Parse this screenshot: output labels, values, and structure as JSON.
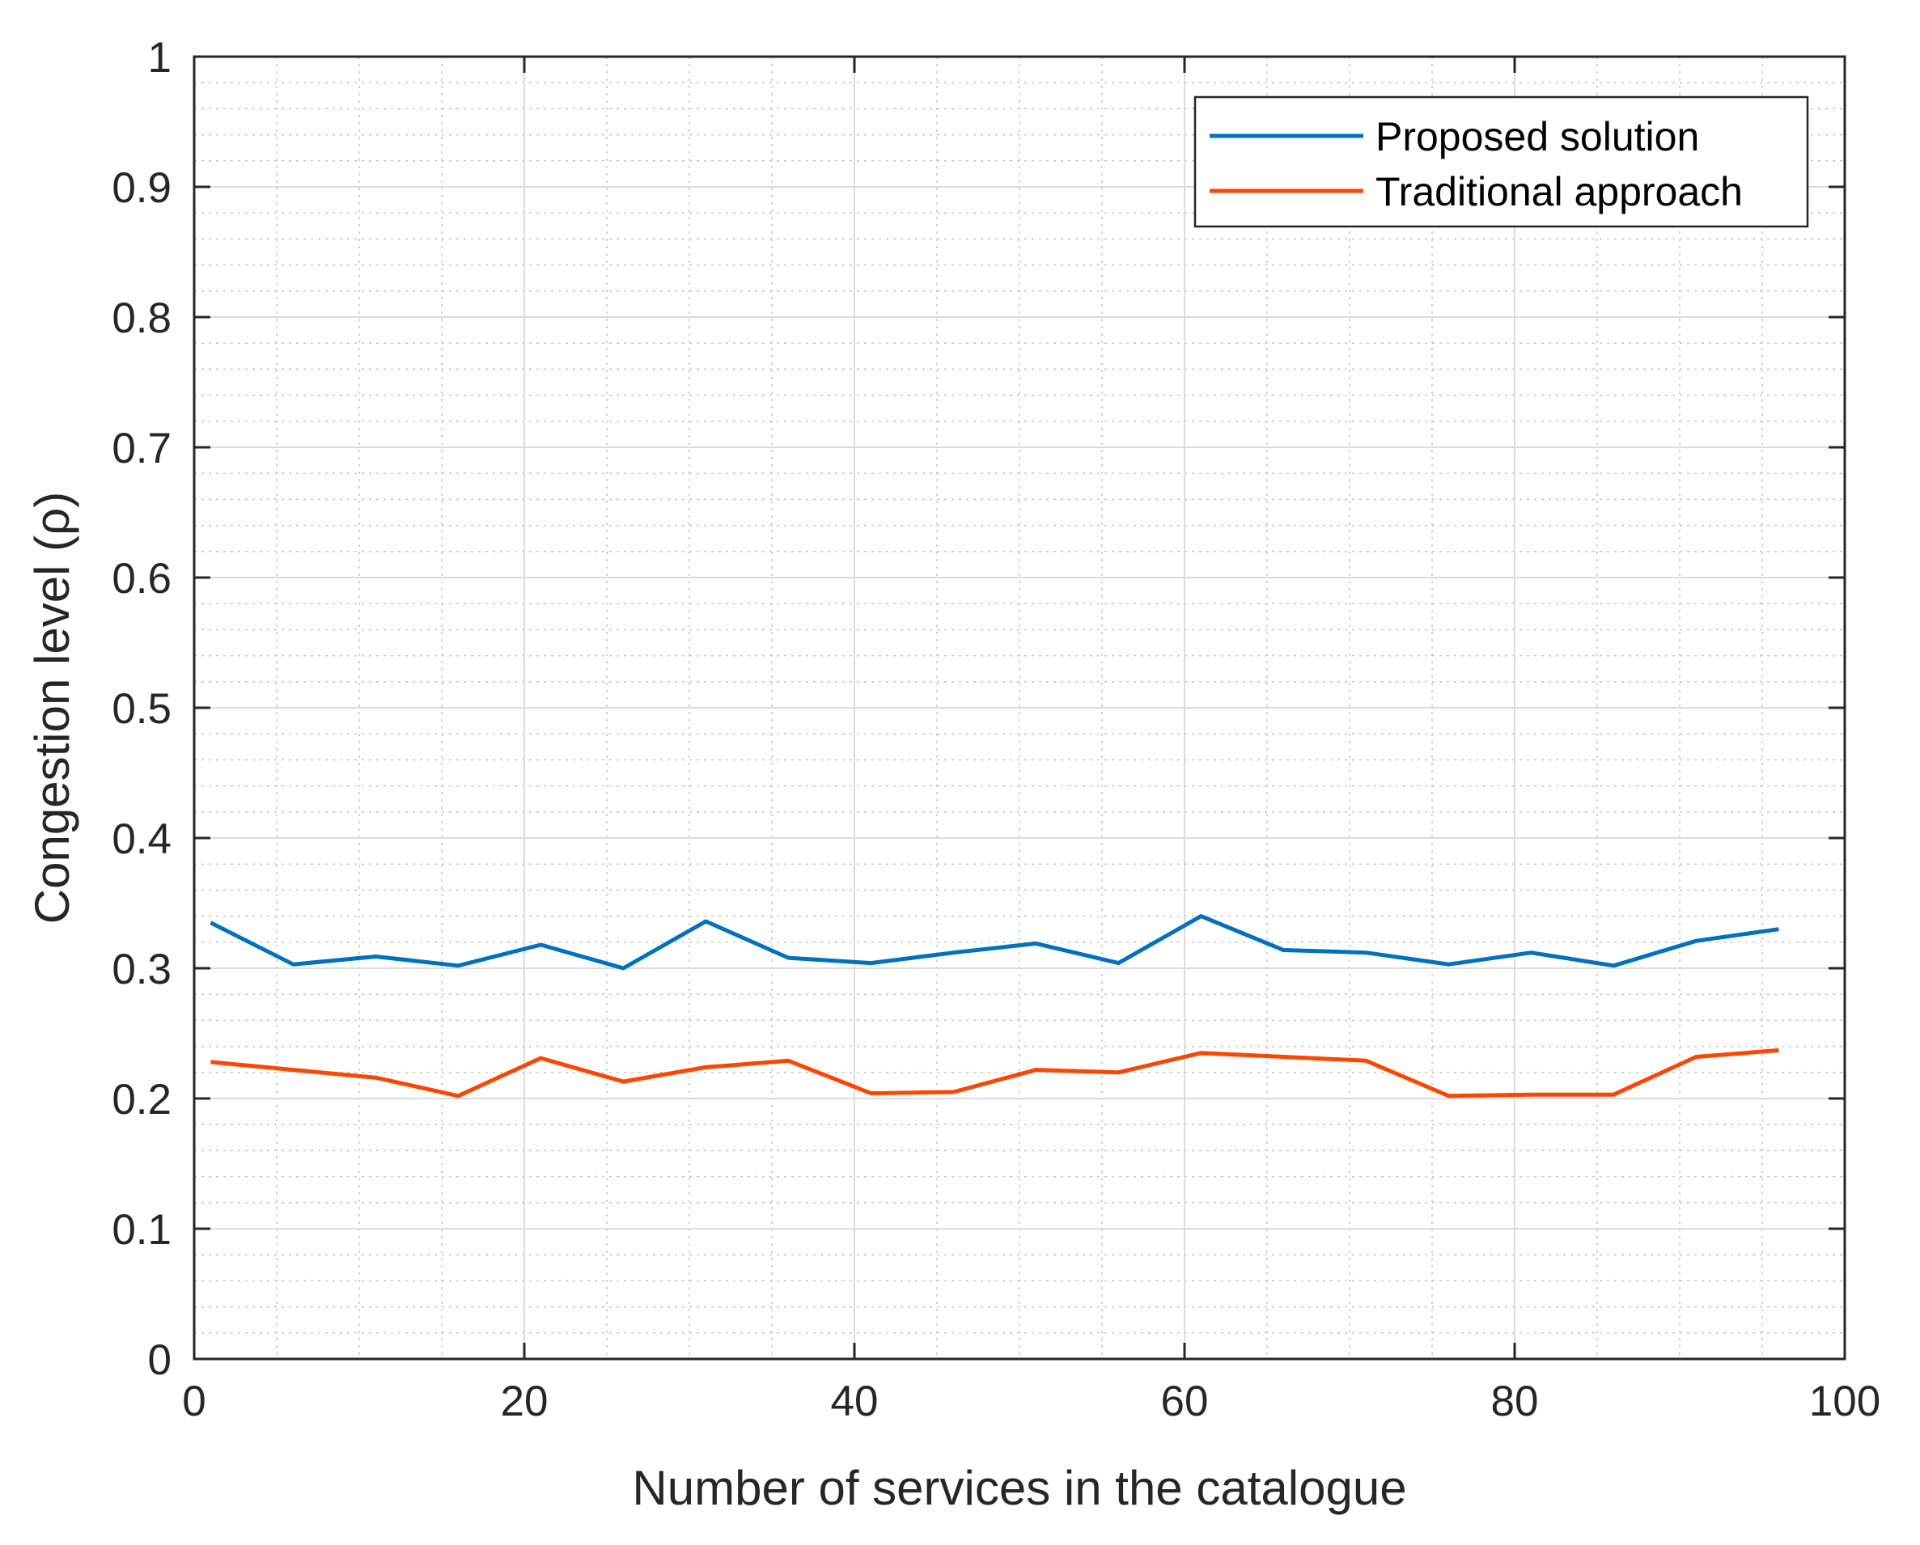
{
  "chart_data": {
    "type": "line",
    "xlabel": "Number of services in the catalogue",
    "ylabel": "Congestion level (ρ)",
    "xlim": [
      0,
      100
    ],
    "ylim": [
      0,
      1
    ],
    "xticks": [
      "0",
      "20",
      "40",
      "60",
      "80",
      "100"
    ],
    "yticks": [
      "0",
      "0.1",
      "0.2",
      "0.3",
      "0.4",
      "0.5",
      "0.6",
      "0.7",
      "0.8",
      "0.9",
      "1"
    ],
    "grid": "major and minor",
    "legend_position": "top-right",
    "x": [
      1,
      6,
      11,
      16,
      21,
      26,
      31,
      36,
      41,
      46,
      51,
      56,
      61,
      66,
      71,
      76,
      81,
      86,
      91,
      96
    ],
    "series": [
      {
        "name": "Proposed solution",
        "color": "#0072BD",
        "values": [
          0.335,
          0.303,
          0.309,
          0.302,
          0.318,
          0.3,
          0.336,
          0.308,
          0.304,
          0.312,
          0.319,
          0.304,
          0.34,
          0.314,
          0.312,
          0.303,
          0.312,
          0.302,
          0.321,
          0.33
        ]
      },
      {
        "name": "Traditional approach",
        "color": "#FF4500",
        "values": [
          0.228,
          0.222,
          0.216,
          0.202,
          0.231,
          0.213,
          0.224,
          0.229,
          0.204,
          0.205,
          0.222,
          0.22,
          0.235,
          0.232,
          0.229,
          0.202,
          0.203,
          0.203,
          0.232,
          0.237
        ]
      }
    ]
  }
}
